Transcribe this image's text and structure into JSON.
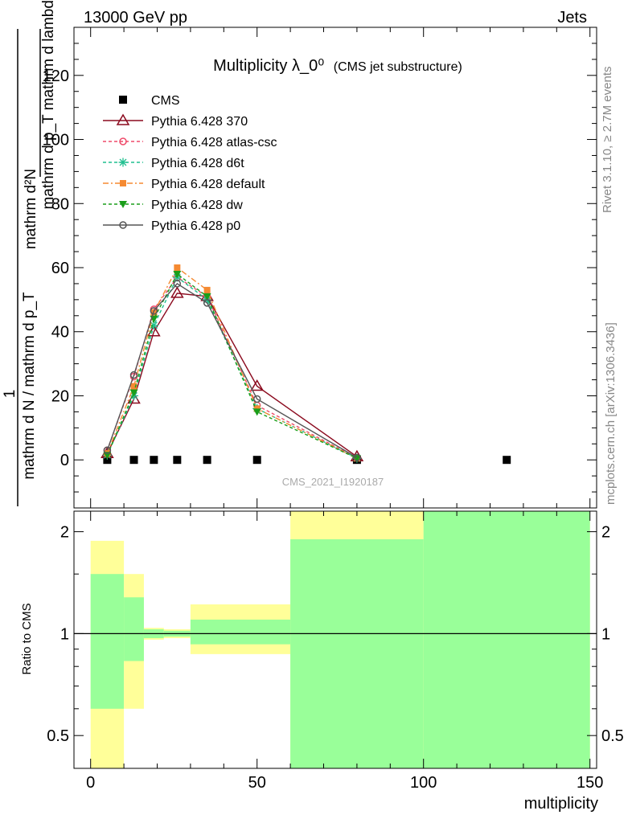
{
  "header": {
    "left": "13000 GeV pp",
    "right": "Jets"
  },
  "side_labels": {
    "rivet": "Rivet 3.1.10, ≥ 2.7M events",
    "mcplots": "mcplots.cern.ch [arXiv:1306.3436]"
  },
  "chart_data": [
    {
      "type": "line",
      "title": "Multiplicity λ_0⁰",
      "subtitle": "(CMS jet substructure)",
      "watermark": "CMS_2021_I1920187",
      "ylabel": {
        "numerator": "mathrm d²N",
        "denominator_fraction": "mathrm d p_T mathrm d lambda",
        "prefix_fraction_top": "1",
        "prefix_fraction_bottom": "mathrm d N / mathrm d p_T"
      },
      "xlim": [
        -5,
        152
      ],
      "ylim": [
        -15,
        135
      ],
      "y_ticks": [
        0,
        20,
        40,
        60,
        80,
        100,
        120
      ],
      "y_tick_labels": [
        "0",
        "20",
        "40",
        "60",
        "80",
        "100",
        "120"
      ],
      "grid": false,
      "legend_position": "top-left",
      "series": [
        {
          "name": "CMS",
          "color": "#000000",
          "marker": "square",
          "line": "none",
          "x": [
            5,
            13,
            19,
            26,
            35,
            50,
            80,
            125
          ],
          "y": [
            0,
            0,
            0,
            0,
            0,
            0,
            0,
            0
          ]
        },
        {
          "name": "Pythia 6.428 370",
          "color": "#8b0a1e",
          "marker": "triangle-open",
          "line": "solid",
          "x": [
            5,
            13,
            19,
            26,
            35,
            50,
            80
          ],
          "y": [
            2,
            19,
            40,
            52,
            51,
            23,
            1
          ]
        },
        {
          "name": "Pythia 6.428 atlas-csc",
          "color": "#ef4a6a",
          "marker": "circle-open",
          "line": "dashed",
          "x": [
            5,
            13,
            19,
            26,
            35,
            50,
            80
          ],
          "y": [
            3,
            26,
            47,
            57,
            51,
            17,
            0.6
          ]
        },
        {
          "name": "Pythia 6.428 d6t",
          "color": "#1fbf8f",
          "marker": "asterisk",
          "line": "dashed",
          "x": [
            5,
            13,
            19,
            26,
            35,
            50,
            80
          ],
          "y": [
            1.5,
            20,
            42,
            57,
            50,
            16,
            0.5
          ]
        },
        {
          "name": "Pythia 6.428 default",
          "color": "#f58a32",
          "marker": "square-filled",
          "line": "dashdot",
          "x": [
            5,
            13,
            19,
            26,
            35,
            50,
            80
          ],
          "y": [
            2,
            23,
            46,
            60,
            53,
            16,
            0.5
          ]
        },
        {
          "name": "Pythia 6.428 dw",
          "color": "#1a9e1a",
          "marker": "triangle-down-filled",
          "line": "dashed",
          "x": [
            5,
            13,
            19,
            26,
            35,
            50,
            80
          ],
          "y": [
            1.5,
            21,
            44,
            58,
            51,
            15,
            0.5
          ]
        },
        {
          "name": "Pythia 6.428 p0",
          "color": "#555555",
          "marker": "circle-open",
          "line": "solid",
          "x": [
            5,
            13,
            19,
            26,
            35,
            50,
            80
          ],
          "y": [
            3,
            26.5,
            46.5,
            55,
            49,
            19,
            0.7
          ]
        }
      ]
    },
    {
      "type": "area",
      "ylabel": "Ratio to CMS",
      "xlabel": "multiplicity",
      "scale": "log",
      "ylim": [
        0.4,
        2.3
      ],
      "y_ticks": [
        0.5,
        1,
        2
      ],
      "y_tick_labels": [
        "0.5",
        "1",
        "2"
      ],
      "x_ticks": [
        0,
        50,
        100,
        150
      ],
      "x_tick_labels": [
        "0",
        "50",
        "100",
        "150"
      ],
      "xlim": [
        -5,
        152
      ],
      "reference_line": 1,
      "bands": {
        "yellow_color": "#ffff99",
        "green_color": "#99ff99",
        "bins": [
          {
            "x_low": 0,
            "x_high": 10,
            "yellow": [
              0.35,
              1.88
            ],
            "green": [
              0.6,
              1.5
            ]
          },
          {
            "x_low": 10,
            "x_high": 16,
            "yellow": [
              0.6,
              1.5
            ],
            "green": [
              0.83,
              1.28
            ]
          },
          {
            "x_low": 16,
            "x_high": 22,
            "yellow": [
              0.96,
              1.04
            ],
            "green": [
              0.97,
              1.03
            ]
          },
          {
            "x_low": 22,
            "x_high": 30,
            "yellow": [
              0.97,
              1.03
            ],
            "green": [
              0.98,
              1.02
            ]
          },
          {
            "x_low": 30,
            "x_high": 60,
            "yellow": [
              0.87,
              1.22
            ],
            "green": [
              0.93,
              1.1
            ]
          },
          {
            "x_low": 60,
            "x_high": 100,
            "yellow": [
              0.35,
              2.5
            ],
            "green": [
              0.35,
              1.9
            ]
          },
          {
            "x_low": 100,
            "x_high": 150,
            "yellow": [
              0.35,
              2.5
            ],
            "green": [
              0.35,
              2.5
            ]
          }
        ]
      }
    }
  ]
}
